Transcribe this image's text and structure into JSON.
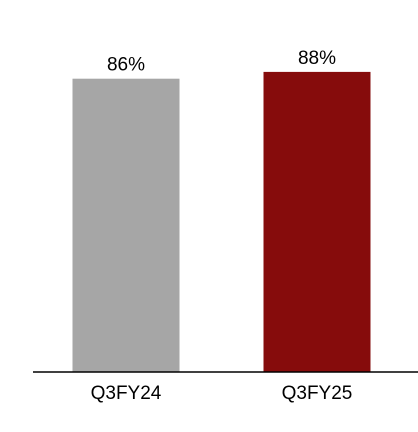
{
  "chart_data": {
    "type": "bar",
    "title": "",
    "xlabel": "",
    "ylabel": "",
    "categories": [
      "Q3FY24",
      "Q3FY25"
    ],
    "values": [
      86,
      88
    ],
    "data_labels": [
      "86%",
      "88%"
    ],
    "colors": [
      "#a6a6a6",
      "#860c0c"
    ],
    "axis_color": "#000000",
    "ylim": [
      0,
      100
    ],
    "grid": false,
    "legend": "none"
  }
}
